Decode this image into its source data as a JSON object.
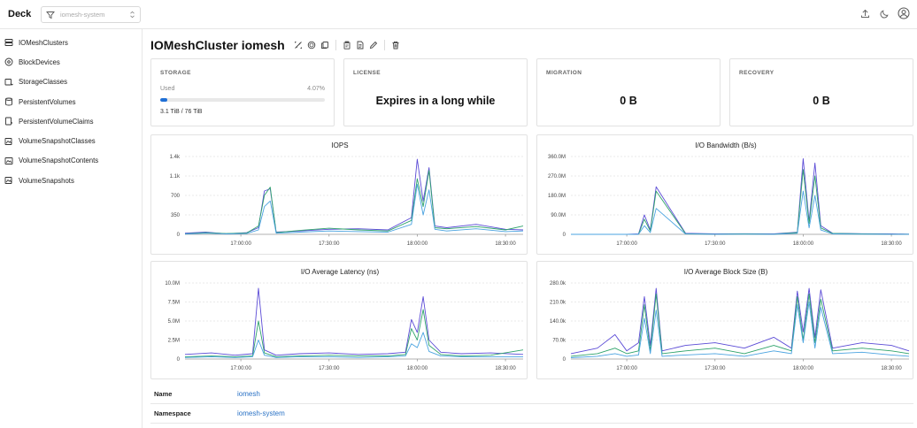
{
  "header": {
    "brand": "Deck",
    "namespace_placeholder": "iomesh-system"
  },
  "sidebar": {
    "items": [
      {
        "label": "IOMeshClusters",
        "icon": "server-icon"
      },
      {
        "label": "BlockDevices",
        "icon": "disk-icon"
      },
      {
        "label": "StorageClasses",
        "icon": "storage-class-icon"
      },
      {
        "label": "PersistentVolumes",
        "icon": "database-icon"
      },
      {
        "label": "PersistentVolumeClaims",
        "icon": "volume-claim-icon"
      },
      {
        "label": "VolumeSnapshotClasses",
        "icon": "snapshot-class-icon"
      },
      {
        "label": "VolumeSnapshotContents",
        "icon": "snapshot-content-icon"
      },
      {
        "label": "VolumeSnapshots",
        "icon": "snapshot-icon"
      }
    ]
  },
  "page": {
    "title": "IOMeshCluster iomesh"
  },
  "cards": {
    "storage": {
      "label": "STORAGE",
      "used_label": "Used",
      "used_percent_text": "4.07%",
      "used_fraction": 0.0407,
      "capacity": "3.1 TiB / 76 TiB"
    },
    "license": {
      "label": "LICENSE",
      "value": "Expires in a long while"
    },
    "migration": {
      "label": "MIGRATION",
      "value": "0 B"
    },
    "recovery": {
      "label": "RECOVERY",
      "value": "0 B"
    }
  },
  "colors": {
    "accent": "#1f6fd6",
    "series_purple": "#5b4bd6",
    "series_green": "#2fa36b",
    "series_blue": "#4aa3e0"
  },
  "chart_data": [
    {
      "type": "line",
      "title": "IOPS",
      "y_ticks": [
        "1.4k",
        "1.1k",
        "700",
        "350",
        "0"
      ],
      "ylim": [
        0,
        1400
      ],
      "x_ticks": [
        "17:00:00",
        "17:30:00",
        "18:00:00",
        "18:30:00"
      ],
      "x": [
        "16:41",
        "16:48",
        "16:55",
        "17:02",
        "17:06",
        "17:08",
        "17:10",
        "17:12",
        "17:20",
        "17:30",
        "17:40",
        "17:50",
        "17:58",
        "18:00",
        "18:02",
        "18:04",
        "18:06",
        "18:10",
        "18:20",
        "18:30",
        "18:36"
      ],
      "series": [
        {
          "values": [
            20,
            40,
            10,
            30,
            120,
            780,
            820,
            40,
            60,
            90,
            100,
            80,
            300,
            1350,
            600,
            1200,
            150,
            120,
            180,
            90,
            80
          ]
        },
        {
          "values": [
            10,
            30,
            15,
            25,
            150,
            700,
            850,
            30,
            70,
            110,
            80,
            60,
            250,
            1000,
            500,
            1150,
            120,
            100,
            140,
            80,
            150
          ]
        },
        {
          "values": [
            5,
            20,
            8,
            15,
            80,
            500,
            600,
            20,
            40,
            60,
            50,
            40,
            180,
            900,
            350,
            800,
            90,
            60,
            100,
            50,
            60
          ]
        }
      ]
    },
    {
      "type": "line",
      "title": "I/O Bandwidth (B/s)",
      "y_ticks": [
        "360.0M",
        "270.0M",
        "180.0M",
        "90.0M",
        "0"
      ],
      "ylim": [
        0,
        360000000
      ],
      "x_ticks": [
        "17:00:00",
        "17:30:00",
        "18:00:00",
        "18:30:00"
      ],
      "x": [
        "16:41",
        "16:50",
        "17:00",
        "17:04",
        "17:06",
        "17:08",
        "17:10",
        "17:20",
        "17:30",
        "17:40",
        "17:50",
        "17:58",
        "18:00",
        "18:02",
        "18:04",
        "18:06",
        "18:10",
        "18:20",
        "18:30",
        "18:36"
      ],
      "series": [
        {
          "values": [
            0,
            0,
            0,
            2000000,
            90000000,
            20000000,
            220000000,
            5000000,
            2000000,
            3000000,
            2000000,
            10000000,
            350000000,
            60000000,
            330000000,
            40000000,
            5000000,
            3000000,
            2000000,
            1000000
          ]
        },
        {
          "values": [
            0,
            0,
            0,
            1000000,
            70000000,
            15000000,
            200000000,
            3000000,
            1000000,
            2000000,
            1000000,
            8000000,
            300000000,
            50000000,
            270000000,
            30000000,
            4000000,
            2000000,
            1000000,
            1000000
          ]
        },
        {
          "values": [
            0,
            0,
            0,
            500000,
            40000000,
            8000000,
            120000000,
            1500000,
            500000,
            1000000,
            500000,
            5000000,
            200000000,
            30000000,
            180000000,
            20000000,
            2000000,
            1000000,
            500000,
            500000
          ]
        }
      ]
    },
    {
      "type": "line",
      "title": "I/O Average Latency (ns)",
      "y_ticks": [
        "10.0M",
        "7.5M",
        "5.0M",
        "2.5M",
        "0"
      ],
      "ylim": [
        0,
        10000000
      ],
      "x_ticks": [
        "17:00:00",
        "17:30:00",
        "18:00:00",
        "18:30:00"
      ],
      "x": [
        "16:41",
        "16:50",
        "16:58",
        "17:04",
        "17:06",
        "17:08",
        "17:12",
        "17:20",
        "17:30",
        "17:40",
        "17:50",
        "17:56",
        "17:58",
        "18:00",
        "18:02",
        "18:04",
        "18:08",
        "18:15",
        "18:25",
        "18:36"
      ],
      "series": [
        {
          "values": [
            600000,
            800000,
            500000,
            700000,
            9300000,
            1200000,
            500000,
            700000,
            800000,
            600000,
            700000,
            900000,
            5200000,
            3500000,
            8200000,
            2500000,
            900000,
            700000,
            800000,
            600000
          ]
        },
        {
          "values": [
            300000,
            400000,
            300000,
            400000,
            5000000,
            800000,
            300000,
            400000,
            500000,
            400000,
            400000,
            600000,
            4000000,
            2500000,
            6500000,
            1800000,
            600000,
            400000,
            500000,
            1200000
          ]
        },
        {
          "values": [
            200000,
            300000,
            200000,
            300000,
            2500000,
            500000,
            200000,
            300000,
            300000,
            200000,
            300000,
            400000,
            2000000,
            1500000,
            3500000,
            1000000,
            400000,
            300000,
            300000,
            300000
          ]
        }
      ]
    },
    {
      "type": "line",
      "title": "I/O Average Block Size (B)",
      "y_ticks": [
        "280.0k",
        "210.0k",
        "140.0k",
        "70.0k",
        "0"
      ],
      "ylim": [
        0,
        280000
      ],
      "x_ticks": [
        "17:00:00",
        "17:30:00",
        "18:00:00",
        "18:30:00"
      ],
      "x": [
        "16:41",
        "16:50",
        "16:56",
        "17:00",
        "17:04",
        "17:06",
        "17:08",
        "17:10",
        "17:12",
        "17:20",
        "17:30",
        "17:40",
        "17:50",
        "17:56",
        "17:58",
        "18:00",
        "18:02",
        "18:04",
        "18:06",
        "18:10",
        "18:20",
        "18:30",
        "18:36"
      ],
      "series": [
        {
          "values": [
            20000,
            40000,
            90000,
            30000,
            60000,
            230000,
            50000,
            260000,
            30000,
            50000,
            60000,
            40000,
            80000,
            40000,
            250000,
            100000,
            260000,
            80000,
            255000,
            40000,
            60000,
            50000,
            30000
          ]
        },
        {
          "values": [
            10000,
            20000,
            40000,
            20000,
            30000,
            200000,
            30000,
            240000,
            20000,
            30000,
            40000,
            20000,
            50000,
            30000,
            230000,
            70000,
            240000,
            60000,
            220000,
            30000,
            40000,
            30000,
            20000
          ]
        },
        {
          "values": [
            5000,
            10000,
            20000,
            10000,
            15000,
            150000,
            20000,
            180000,
            10000,
            15000,
            20000,
            10000,
            30000,
            20000,
            200000,
            60000,
            210000,
            40000,
            190000,
            20000,
            25000,
            15000,
            10000
          ]
        }
      ]
    }
  ],
  "details": [
    {
      "key": "Name",
      "value": "iomesh"
    },
    {
      "key": "Namespace",
      "value": "iomesh-system"
    }
  ]
}
